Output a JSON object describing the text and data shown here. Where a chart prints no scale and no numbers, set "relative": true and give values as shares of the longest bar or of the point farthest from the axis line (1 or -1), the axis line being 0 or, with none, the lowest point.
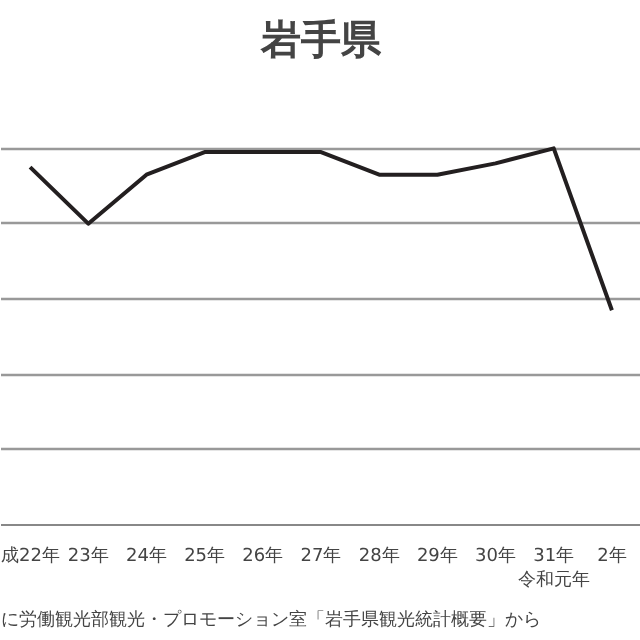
{
  "chart_data": {
    "type": "line",
    "title": "岩手県",
    "relative": true,
    "grid": "y",
    "marker": "none",
    "line_style": "solid",
    "categories": [
      "成22年",
      "23年",
      "24年",
      "25年",
      "26年",
      "27年",
      "28年",
      "29年",
      "30年",
      "31年令和元年",
      "2年"
    ],
    "series": [
      {
        "color": "#231f20",
        "values": [
          0.95,
          0.8,
          0.93,
          0.99,
          0.99,
          0.99,
          0.93,
          0.93,
          0.96,
          1.0,
          0.57
        ]
      }
    ],
    "annotations": [
      "に労働観光部観光・プロモーション室「岩手県観光統計概要」から"
    ]
  }
}
